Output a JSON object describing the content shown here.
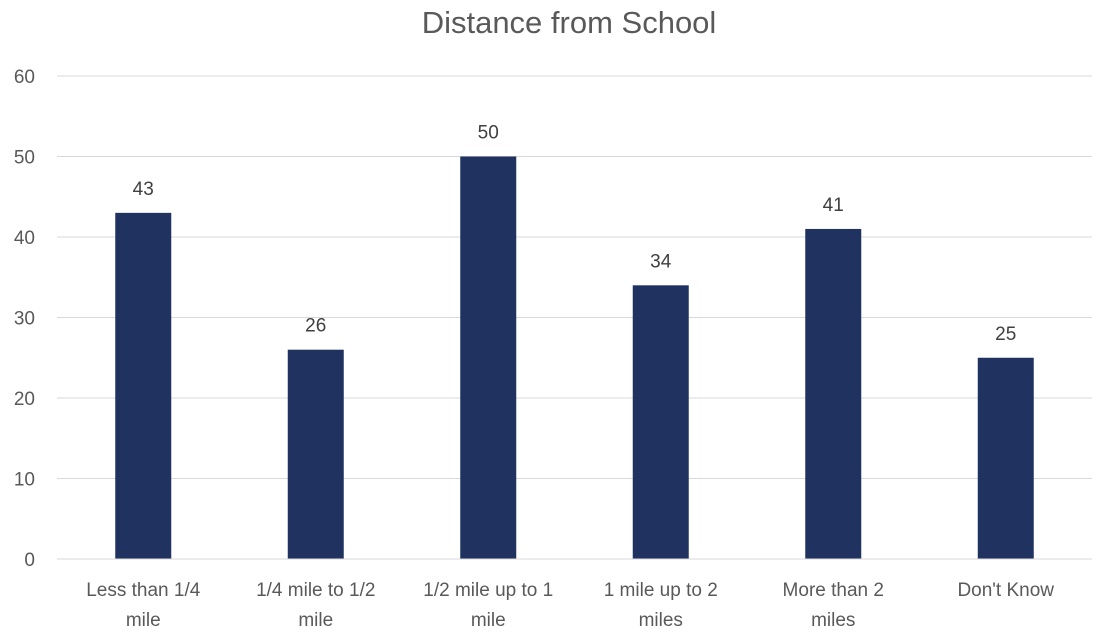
{
  "chart_data": {
    "type": "bar",
    "title": "Distance from School",
    "xlabel": "",
    "ylabel": "",
    "categories": [
      [
        "Less than 1/4",
        "mile"
      ],
      [
        "1/4 mile to 1/2",
        "mile"
      ],
      [
        "1/2 mile up to 1",
        "mile"
      ],
      [
        "1 mile up to 2",
        "miles"
      ],
      [
        "More than 2",
        "miles"
      ],
      [
        "Don't Know"
      ]
    ],
    "values": [
      43,
      26,
      50,
      34,
      41,
      25
    ],
    "ylim": [
      0,
      60
    ],
    "yticks": [
      0,
      10,
      20,
      30,
      40,
      50,
      60
    ],
    "grid": true,
    "legend": "none",
    "data_labels": true,
    "bar_color": "#1f3260"
  }
}
